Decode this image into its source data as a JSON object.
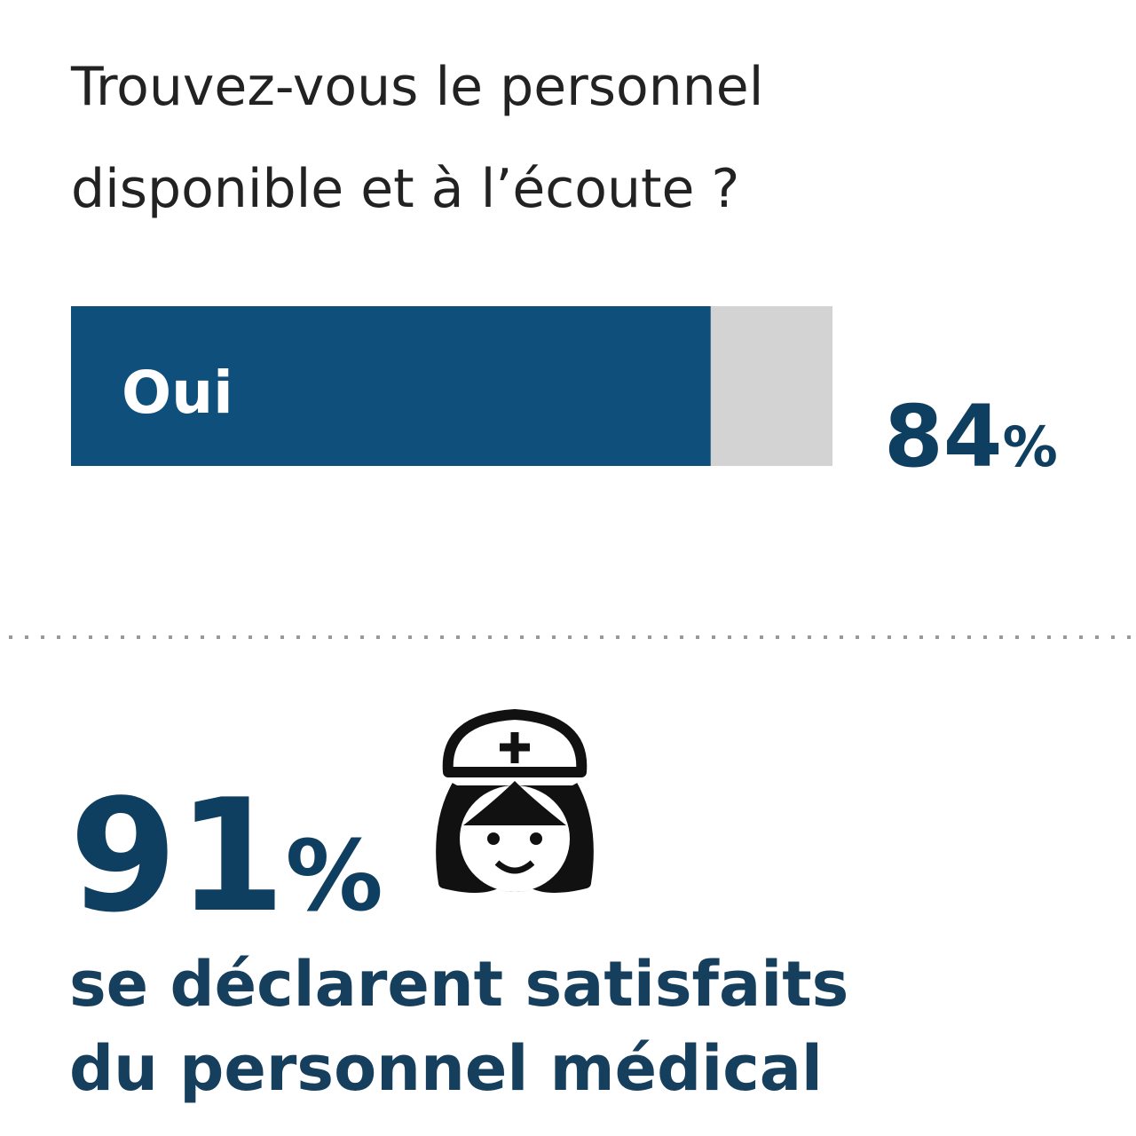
{
  "question": [
    "Trouvez-vous le personnel",
    "disponible  et à l’écoute ?"
  ],
  "bar": {
    "label": "Oui",
    "value": 84,
    "unit": "%",
    "xlim": [
      0,
      100
    ],
    "color": "#0e4f7c",
    "track_color": "#d3d3d3"
  },
  "stat": {
    "value": 91,
    "unit": "%",
    "lines": [
      "se déclarent satisfaits",
      "du personnel médical"
    ]
  }
}
